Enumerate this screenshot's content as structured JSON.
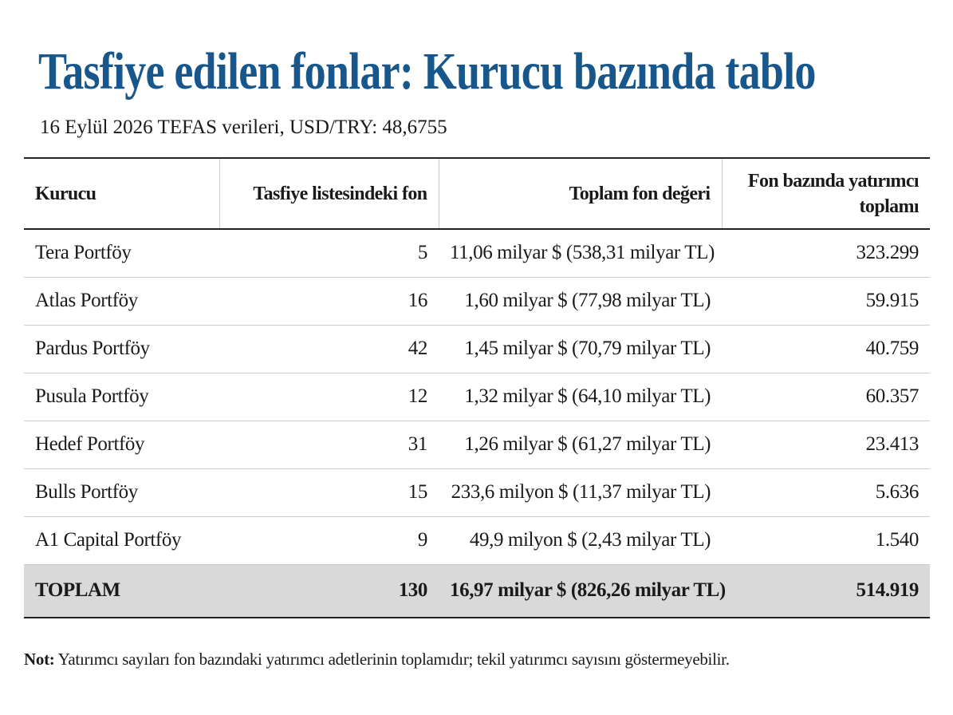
{
  "title": "Tasfiye edilen fonlar: Kurucu bazında tablo",
  "subtitle": "16 Eylül 2026 TEFAS verileri, USD/TRY: 48,6755",
  "table": {
    "header": [
      "Kurucu",
      "Tasfiye listesindeki fon",
      "Toplam fon değeri",
      "Fon bazında yatırımcı toplamı"
    ],
    "rows": [
      [
        "Tera Portföy",
        "5",
        "11,06 milyar $ (538,31 milyar TL)",
        "323.299"
      ],
      [
        "Atlas Portföy",
        "16",
        "1,60 milyar $ (77,98 milyar TL)",
        "59.915"
      ],
      [
        "Pardus Portföy",
        "42",
        "1,45 milyar $ (70,79 milyar TL)",
        "40.759"
      ],
      [
        "Pusula Portföy",
        "12",
        "1,32 milyar $ (64,10 milyar TL)",
        "60.357"
      ],
      [
        "Hedef Portföy",
        "31",
        "1,26 milyar $ (61,27 milyar TL)",
        "23.413"
      ],
      [
        "Bulls Portföy",
        "15",
        "233,6 milyon $ (11,37 milyar TL)",
        "5.636"
      ],
      [
        "A1 Capital Portföy",
        "9",
        "49,9 milyon $ (2,43 milyar TL)",
        "1.540"
      ]
    ],
    "total": [
      "TOPLAM",
      "130",
      "16,97 milyar $ (826,26 milyar TL)",
      "514.919"
    ]
  },
  "note": {
    "label": "Not:",
    "text": "Yatırımcı sayıları fon bazındaki yatırımcı adetlerinin toplamıdır; tekil yatırımcı sayısını göstermeyebilir."
  }
}
